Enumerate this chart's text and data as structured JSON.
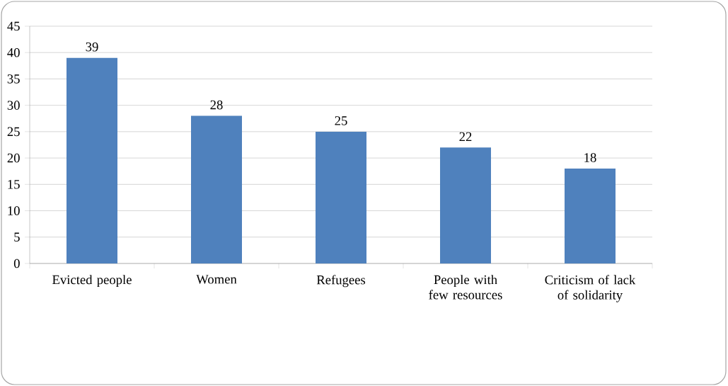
{
  "chart_data": {
    "type": "bar",
    "categories": [
      "Evicted people",
      "Women",
      "Refugees",
      "People with few resources",
      "Criticism of lack of solidarity"
    ],
    "values": [
      39,
      28,
      25,
      22,
      18
    ],
    "color": "#4f81bd",
    "ylim": [
      0,
      45
    ],
    "yticks": [
      0,
      5,
      10,
      15,
      20,
      25,
      30,
      35,
      40,
      45
    ],
    "grid": "y",
    "data_labels": true
  }
}
